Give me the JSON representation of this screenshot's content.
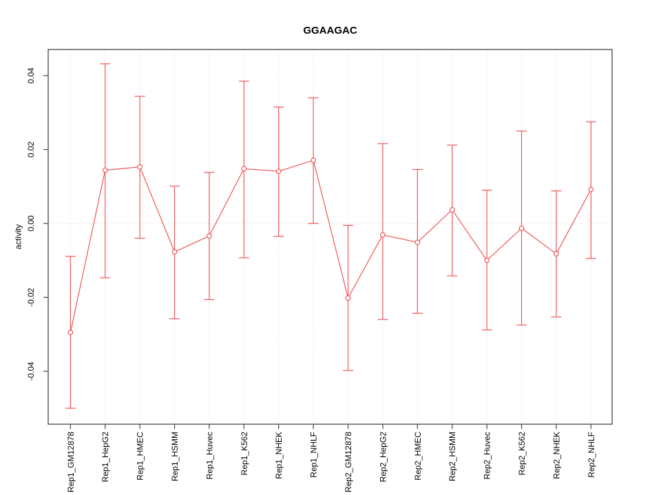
{
  "chart_data": {
    "type": "line",
    "subtype": "points-with-error-bars",
    "title": "GGAAGAC",
    "xlabel": "",
    "ylabel": "activity",
    "grid": "vertical-dotted-per-category-plus-dotted-zero-line",
    "legend": "none",
    "marker": "open-circle",
    "ylim": [
      -0.052,
      0.047
    ],
    "yticks": [
      0.04,
      0.02,
      0.0,
      -0.02,
      -0.04
    ],
    "ytick_labels": [
      "0.04",
      "0.02",
      "0.00",
      "-0.02",
      "-0.04"
    ],
    "zero_reference_line": 0.0,
    "categories": [
      "Rep1_GM12878",
      "Rep1_HepG2",
      "Rep1_HMEC",
      "Rep1_HSMM",
      "Rep1_Huvec",
      "Rep1_K562",
      "Rep1_NHEK",
      "Rep1_NHLF",
      "Rep2_GM12878",
      "Rep2_HepG2",
      "Rep2_HMEC",
      "Rep2_HSMM",
      "Rep2_Huvec",
      "Rep2_K562",
      "Rep2_NHEK",
      "Rep2_NHLF"
    ],
    "series": [
      {
        "name": "activity",
        "values": [
          -0.0295,
          0.0144,
          0.0153,
          -0.0077,
          -0.0034,
          0.0148,
          0.0141,
          0.0171,
          -0.0202,
          -0.0031,
          -0.0051,
          0.0037,
          -0.01,
          -0.0013,
          -0.0082,
          0.0092
        ],
        "err_high": [
          -0.0089,
          0.0432,
          0.0344,
          0.0101,
          0.0138,
          0.0385,
          0.0315,
          0.034,
          -0.0005,
          0.0216,
          0.0146,
          0.0212,
          0.009,
          0.025,
          0.0088,
          0.0275
        ],
        "err_low": [
          -0.05,
          -0.0147,
          -0.004,
          -0.0258,
          -0.0206,
          -0.0093,
          -0.0035,
          0.0,
          -0.0398,
          -0.026,
          -0.0243,
          -0.0142,
          -0.0288,
          -0.0275,
          -0.0253,
          -0.0095
        ]
      }
    ],
    "colors": {
      "series": "#F05555",
      "grid": "#d6d6d6",
      "zero_line": "#d0d0d0",
      "axis": "#454545",
      "text": "#000000",
      "background": "#ffffff"
    }
  }
}
